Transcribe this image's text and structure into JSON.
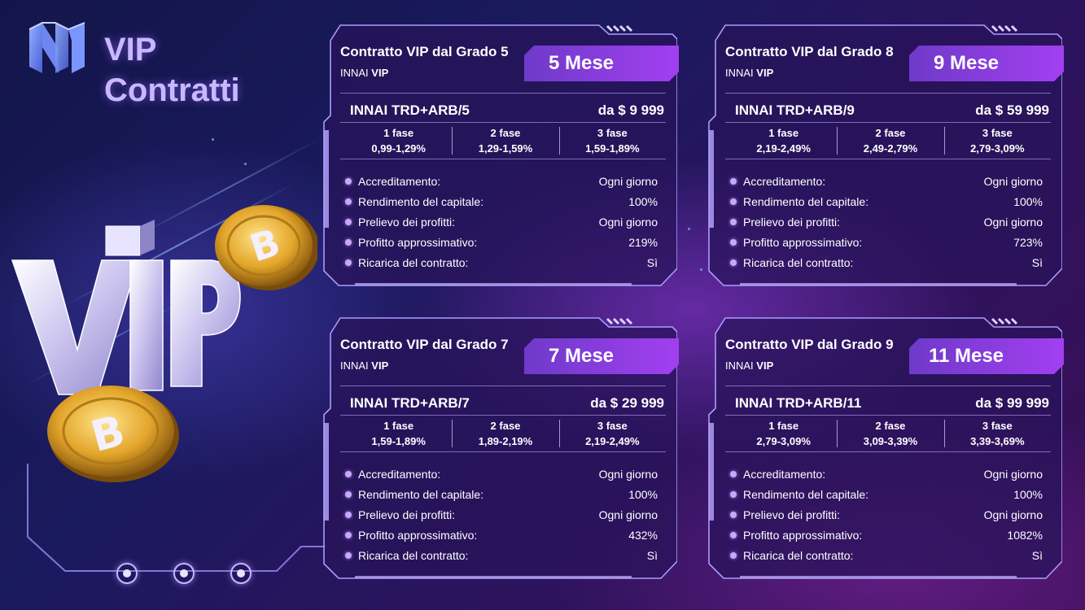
{
  "header": {
    "title_line1": "VIP",
    "title_line2": "Contratti"
  },
  "pager": {
    "count": 3
  },
  "cards": [
    {
      "title": "Contratto VIP dal Grado 5",
      "sub_prefix": "INNAI ",
      "sub_bold": "VIP",
      "badge": "5 Mese",
      "product": "INNAI TRD+ARB/5",
      "price": "da $ 9 999",
      "phases": [
        {
          "name": "1 fase",
          "range": "0,99-1,29%"
        },
        {
          "name": "2 fase",
          "range": "1,29-1,59%"
        },
        {
          "name": "3 fase",
          "range": "1,59-1,89%"
        }
      ],
      "rows": [
        {
          "label": "Accreditamento:",
          "value": "Ogni giorno"
        },
        {
          "label": "Rendimento del capitale:",
          "value": "100%"
        },
        {
          "label": "Prelievo dei profitti:",
          "value": "Ogni giorno"
        },
        {
          "label": "Profitto approssimativo:",
          "value": "219%"
        },
        {
          "label": "Ricarica del contratto:",
          "value": "Sì"
        }
      ]
    },
    {
      "title": "Contratto VIP dal Grado 8",
      "sub_prefix": "INNAI ",
      "sub_bold": "VIP",
      "badge": "9 Mese",
      "product": "INNAI TRD+ARB/9",
      "price": "da $ 59 999",
      "phases": [
        {
          "name": "1 fase",
          "range": "2,19-2,49%"
        },
        {
          "name": "2 fase",
          "range": "2,49-2,79%"
        },
        {
          "name": "3 fase",
          "range": "2,79-3,09%"
        }
      ],
      "rows": [
        {
          "label": "Accreditamento:",
          "value": "Ogni giorno"
        },
        {
          "label": "Rendimento del capitale:",
          "value": "100%"
        },
        {
          "label": "Prelievo dei profitti:",
          "value": "Ogni giorno"
        },
        {
          "label": "Profitto approssimativo:",
          "value": "723%"
        },
        {
          "label": "Ricarica del contratto:",
          "value": "Sì"
        }
      ]
    },
    {
      "title": "Contratto VIP dal Grado 7",
      "sub_prefix": "INNAI ",
      "sub_bold": "VIP",
      "badge": "7 Mese",
      "product": "INNAI TRD+ARB/7",
      "price": "da $ 29 999",
      "phases": [
        {
          "name": "1 fase",
          "range": "1,59-1,89%"
        },
        {
          "name": "2 fase",
          "range": "1,89-2,19%"
        },
        {
          "name": "3 fase",
          "range": "2,19-2,49%"
        }
      ],
      "rows": [
        {
          "label": "Accreditamento:",
          "value": "Ogni giorno"
        },
        {
          "label": "Rendimento del capitale:",
          "value": "100%"
        },
        {
          "label": "Prelievo dei profitti:",
          "value": "Ogni giorno"
        },
        {
          "label": "Profitto approssimativo:",
          "value": "432%"
        },
        {
          "label": "Ricarica del contratto:",
          "value": "Sì"
        }
      ]
    },
    {
      "title": "Contratto VIP dal Grado 9",
      "sub_prefix": "INNAI ",
      "sub_bold": "VIP",
      "badge": "11 Mese",
      "product": "INNAI TRD+ARB/11",
      "price": "da $ 99 999",
      "phases": [
        {
          "name": "1 fase",
          "range": "2,79-3,09%"
        },
        {
          "name": "2 fase",
          "range": "3,09-3,39%"
        },
        {
          "name": "3 fase",
          "range": "3,39-3,69%"
        }
      ],
      "rows": [
        {
          "label": "Accreditamento:",
          "value": "Ogni giorno"
        },
        {
          "label": "Rendimento del capitale:",
          "value": "100%"
        },
        {
          "label": "Prelievo dei profitti:",
          "value": "Ogni giorno"
        },
        {
          "label": "Profitto approssimativo:",
          "value": "1082%"
        },
        {
          "label": "Ricarica del contratto:",
          "value": "Sì"
        }
      ]
    }
  ],
  "colors": {
    "badge_from": "#7a3fd6",
    "badge_to": "#a43ff0",
    "frame": "#a99bff",
    "bullet": "#c7a7ff"
  }
}
